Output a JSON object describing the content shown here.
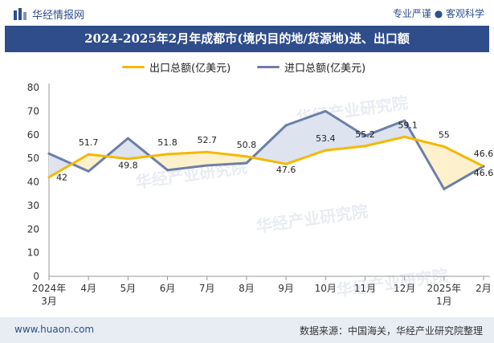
{
  "header": {
    "brand": "华经情报网",
    "tagline": "专业严谨 ● 客观科学"
  },
  "title": "2024-2025年2月年成都市(境内目的地/货源地)进、出口额",
  "watermark": "华经产业研究院",
  "colors": {
    "export": "#f5b800",
    "import": "#6b7fa8",
    "export_fill": "#fdf0cc",
    "import_fill": "#dde3ef",
    "title_bg": "#2f4d8a"
  },
  "footer": {
    "site": "www.huaon.com",
    "source": "数据来源：中国海关，华经产业研究院整理"
  },
  "chart_data": {
    "type": "line",
    "categories": [
      "2024年3月",
      "4月",
      "5月",
      "6月",
      "7月",
      "8月",
      "9月",
      "10月",
      "11月",
      "12月",
      "2025年1月",
      "2月"
    ],
    "series": [
      {
        "name": "出口总额(亿美元)",
        "values": [
          42,
          51.7,
          49.8,
          51.8,
          52.7,
          50.8,
          47.6,
          53.4,
          55.2,
          59.1,
          55,
          46.6
        ]
      },
      {
        "name": "进口总额(亿美元)",
        "values": [
          52,
          44.5,
          58.5,
          45,
          47,
          48,
          64,
          70,
          59.5,
          66,
          37,
          46.6
        ]
      }
    ],
    "data_labels": [
      "42",
      "51.7",
      "49.8",
      "51.8",
      "52.7",
      "50.8",
      "47.6",
      "53.4",
      "55.2",
      "59.1",
      "55",
      "46.6"
    ],
    "y_ticks": [
      0,
      10,
      20,
      30,
      40,
      50,
      60,
      70,
      80
    ],
    "ylim": [
      0,
      80
    ],
    "grid": false,
    "legend": "top-center"
  }
}
